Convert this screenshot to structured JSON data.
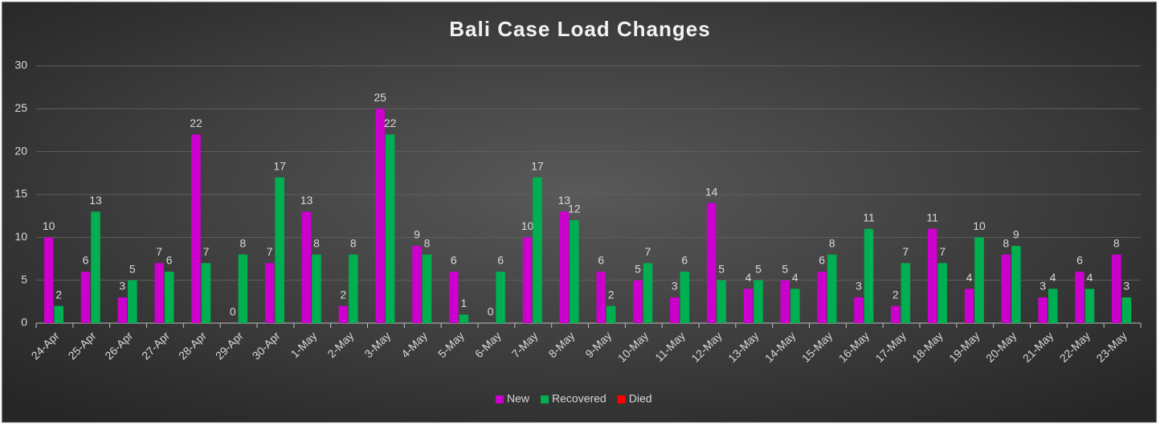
{
  "chart_data": {
    "type": "bar",
    "title": "Bali Case Load Changes",
    "categories": [
      "24-Apr",
      "25-Apr",
      "26-Apr",
      "27-Apr",
      "28-Apr",
      "29-Apr",
      "30-Apr",
      "1-May",
      "2-May",
      "3-May",
      "4-May",
      "5-May",
      "6-May",
      "7-May",
      "8-May",
      "9-May",
      "10-May",
      "11-May",
      "12-May",
      "13-May",
      "14-May",
      "15-May",
      "16-May",
      "17-May",
      "18-May",
      "19-May",
      "20-May",
      "21-May",
      "22-May",
      "23-May"
    ],
    "series": [
      {
        "name": "New",
        "color": "#cc00cc",
        "values": [
          10,
          6,
          3,
          7,
          22,
          0,
          7,
          13,
          2,
          25,
          9,
          6,
          0,
          10,
          13,
          6,
          5,
          3,
          14,
          4,
          5,
          6,
          3,
          2,
          11,
          4,
          8,
          3,
          6,
          8
        ]
      },
      {
        "name": "Recovered",
        "color": "#00b050",
        "values": [
          2,
          13,
          5,
          6,
          7,
          8,
          17,
          8,
          8,
          22,
          8,
          1,
          6,
          17,
          12,
          2,
          7,
          6,
          5,
          5,
          4,
          8,
          11,
          7,
          7,
          10,
          9,
          4,
          4,
          3
        ]
      },
      {
        "name": "Died",
        "color": "#ff0000",
        "values": [
          null,
          null,
          null,
          null,
          null,
          null,
          null,
          null,
          null,
          null,
          null,
          null,
          null,
          null,
          null,
          null,
          null,
          null,
          null,
          null,
          null,
          null,
          null,
          null,
          null,
          null,
          null,
          null,
          null,
          null
        ]
      }
    ],
    "ylim": [
      0,
      30
    ],
    "yticks": [
      0,
      5,
      10,
      15,
      20,
      25,
      30
    ],
    "grid": true,
    "legend": "bottom"
  }
}
